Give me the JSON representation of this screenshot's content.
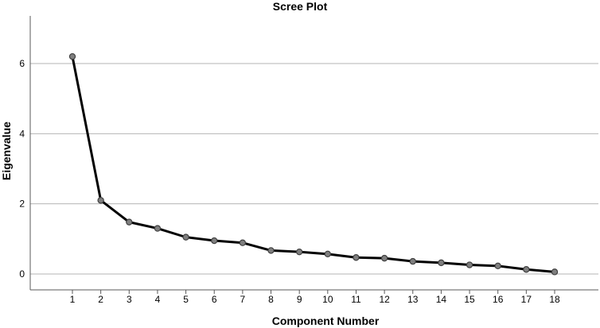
{
  "chart_data": {
    "type": "line",
    "title": "Scree Plot",
    "xlabel": "Component Number",
    "ylabel": "Eigenvalue",
    "x": [
      1,
      2,
      3,
      4,
      5,
      6,
      7,
      8,
      9,
      10,
      11,
      12,
      13,
      14,
      15,
      16,
      17,
      18
    ],
    "x_ticks": [
      "1",
      "2",
      "3",
      "4",
      "5",
      "6",
      "7",
      "8",
      "9",
      "10",
      "11",
      "12",
      "13",
      "14",
      "15",
      "16",
      "17",
      "18"
    ],
    "y_ticks": [
      "0",
      "2",
      "4",
      "6"
    ],
    "ylim": [
      -0.15,
      7.3
    ],
    "xlim": [
      0,
      19
    ],
    "grid": true,
    "series": [
      {
        "values": [
          6.2,
          2.1,
          1.48,
          1.3,
          1.05,
          0.95,
          0.89,
          0.67,
          0.63,
          0.57,
          0.47,
          0.45,
          0.36,
          0.32,
          0.26,
          0.23,
          0.13,
          0.06
        ]
      }
    ],
    "colors": {
      "line": "#000000",
      "marker_fill": "#7f7f7f",
      "marker_stroke": "#404040",
      "grid": "#b4b4b4",
      "axis": "#595959"
    }
  }
}
